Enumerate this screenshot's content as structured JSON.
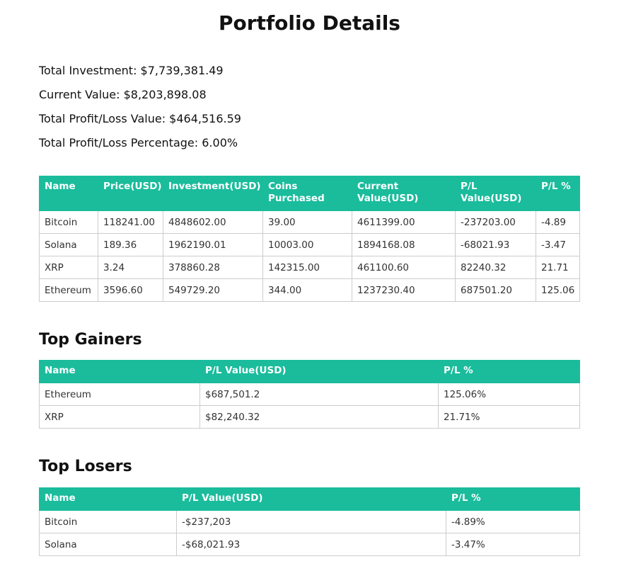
{
  "title": "Portfolio Details",
  "summary": {
    "total_investment": "Total Investment: $7,739,381.49",
    "current_value": "Current Value: $8,203,898.08",
    "total_pl_value": "Total Profit/Loss Value: $464,516.59",
    "total_pl_percentage": "Total Profit/Loss Percentage: 6.00%"
  },
  "holdings": {
    "headers": [
      "Name",
      "Price(USD)",
      "Investment(USD)",
      "Coins Purchased",
      "Current Value(USD)",
      "P/L Value(USD)",
      "P/L %"
    ],
    "rows": [
      [
        "Bitcoin",
        "118241.00",
        "4848602.00",
        "39.00",
        "4611399.00",
        "-237203.00",
        "-4.89"
      ],
      [
        "Solana",
        "189.36",
        "1962190.01",
        "10003.00",
        "1894168.08",
        "-68021.93",
        "-3.47"
      ],
      [
        "XRP",
        "3.24",
        "378860.28",
        "142315.00",
        "461100.60",
        "82240.32",
        "21.71"
      ],
      [
        "Ethereum",
        "3596.60",
        "549729.20",
        "344.00",
        "1237230.40",
        "687501.20",
        "125.06"
      ]
    ]
  },
  "top_gainers": {
    "heading": "Top Gainers",
    "headers": [
      "Name",
      "P/L Value(USD)",
      "P/L %"
    ],
    "rows": [
      [
        "Ethereum",
        "$687,501.2",
        "125.06%"
      ],
      [
        "XRP",
        "$82,240.32",
        "21.71%"
      ]
    ]
  },
  "top_losers": {
    "heading": "Top Losers",
    "headers": [
      "Name",
      "P/L Value(USD)",
      "P/L %"
    ],
    "rows": [
      [
        "Bitcoin",
        "-$237,203",
        "-4.89%"
      ],
      [
        "Solana",
        "-$68,021.93",
        "-3.47%"
      ]
    ]
  },
  "colors": {
    "header_bg": "#1abc9c",
    "header_text": "#ffffff",
    "border": "#cccccc"
  }
}
